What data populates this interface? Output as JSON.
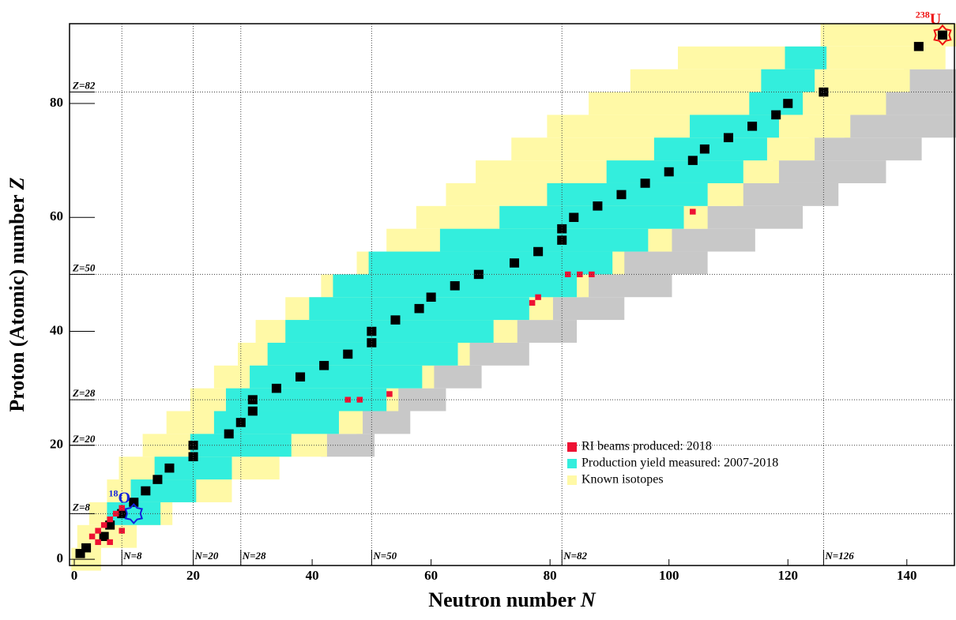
{
  "chart_data": {
    "type": "nuclide-chart",
    "xlabel": "Neutron number",
    "xlabel_symbol": "N",
    "ylabel": "Proton (Atomic) number",
    "ylabel_symbol": "Z",
    "xlim": [
      -0.8,
      148
    ],
    "ylim": [
      -1.1,
      94
    ],
    "xticks": [
      0,
      20,
      40,
      60,
      80,
      100,
      120,
      140
    ],
    "yticks": [
      0,
      20,
      40,
      60,
      80
    ],
    "legend": "lower right",
    "magic_n": [
      {
        "value": 8,
        "label": "N=8"
      },
      {
        "value": 20,
        "label": "N=20"
      },
      {
        "value": 28,
        "label": "N=28"
      },
      {
        "value": 50,
        "label": "N=50"
      },
      {
        "value": 82,
        "label": "N=82"
      },
      {
        "value": 126,
        "label": "N=126"
      }
    ],
    "magic_z": [
      {
        "value": 8,
        "label": "Z=8"
      },
      {
        "value": 20,
        "label": "Z=20"
      },
      {
        "value": 28,
        "label": "Z=28"
      },
      {
        "value": 50,
        "label": "Z=50"
      },
      {
        "value": 82,
        "label": "Z=82"
      }
    ],
    "series": [
      {
        "name": "RI beams produced: 2018",
        "color": "#ee1133",
        "n": [
          3,
          4,
          5,
          6,
          7,
          8,
          4,
          6,
          8,
          46,
          48,
          53,
          77,
          78,
          83,
          85,
          87,
          104
        ],
        "z": [
          4,
          5,
          6,
          7,
          8,
          9,
          3,
          3,
          5,
          28,
          28,
          29,
          45,
          46,
          50,
          50,
          50,
          61
        ]
      },
      {
        "name": "Production yield measured: 2007-2018",
        "color": "#33eedd",
        "z": [
          8,
          12,
          16,
          20,
          24,
          28,
          32,
          36,
          40,
          44,
          48,
          52,
          56,
          60,
          64,
          68,
          72,
          76,
          80,
          84,
          88
        ],
        "n_min": [
          6,
          10,
          14,
          20,
          24,
          26,
          30,
          33,
          36,
          40,
          44,
          50,
          62,
          72,
          80,
          90,
          98,
          104,
          114,
          116,
          120
        ],
        "n_max": [
          14,
          20,
          26,
          36,
          44,
          52,
          58,
          64,
          70,
          76,
          84,
          90,
          96,
          102,
          106,
          112,
          116,
          118,
          122,
          124,
          126
        ]
      },
      {
        "name": "Known isotopes",
        "color": "#fff9a6",
        "z": [
          0,
          4,
          8,
          12,
          16,
          20,
          24,
          28,
          32,
          36,
          40,
          44,
          48,
          52,
          56,
          60,
          64,
          68,
          72,
          76,
          80,
          84,
          88,
          92
        ],
        "n_min": [
          0,
          1,
          3,
          6,
          8,
          12,
          16,
          20,
          24,
          28,
          31,
          36,
          42,
          48,
          53,
          58,
          63,
          68,
          74,
          80,
          87,
          94,
          102,
          126
        ],
        "n_max": [
          4,
          10,
          16,
          26,
          34,
          42,
          48,
          54,
          60,
          66,
          74,
          80,
          86,
          92,
          100,
          106,
          112,
          118,
          124,
          130,
          136,
          140,
          146,
          148
        ]
      }
    ],
    "unknown": {
      "color": "#c8c8c8",
      "z": [
        20,
        24,
        28,
        32,
        36,
        40,
        44,
        48,
        52,
        56,
        60,
        64,
        68,
        72,
        76,
        80,
        84
      ],
      "n_min": [
        42,
        48,
        54,
        60,
        66,
        74,
        80,
        86,
        92,
        100,
        106,
        112,
        118,
        124,
        130,
        136,
        140
      ],
      "n_max": [
        50,
        56,
        62,
        68,
        76,
        84,
        92,
        100,
        106,
        114,
        122,
        128,
        136,
        142,
        148,
        148,
        148
      ]
    },
    "stable": {
      "color": "#000000",
      "n": [
        1,
        2,
        5,
        6,
        8,
        10,
        12,
        14,
        16,
        20,
        20,
        26,
        28,
        30,
        30,
        34,
        38,
        42,
        46,
        50,
        50,
        54,
        58,
        60,
        64,
        68,
        74,
        78,
        82,
        82,
        84,
        88,
        92,
        96,
        100,
        104,
        106,
        110,
        114,
        118,
        120,
        126,
        142,
        146
      ],
      "z": [
        1,
        2,
        4,
        6,
        8,
        10,
        12,
        14,
        16,
        18,
        20,
        22,
        24,
        26,
        28,
        30,
        32,
        34,
        36,
        38,
        40,
        42,
        44,
        46,
        48,
        50,
        52,
        54,
        56,
        58,
        60,
        62,
        64,
        66,
        68,
        70,
        72,
        74,
        76,
        78,
        80,
        82,
        90,
        92
      ]
    },
    "markers": [
      {
        "mass": 18,
        "symbol": "O",
        "n": 10,
        "z": 8,
        "color": "#1122dd"
      },
      {
        "mass": 238,
        "symbol": "U",
        "n": 146,
        "z": 92,
        "color": "#ee1111"
      }
    ]
  }
}
